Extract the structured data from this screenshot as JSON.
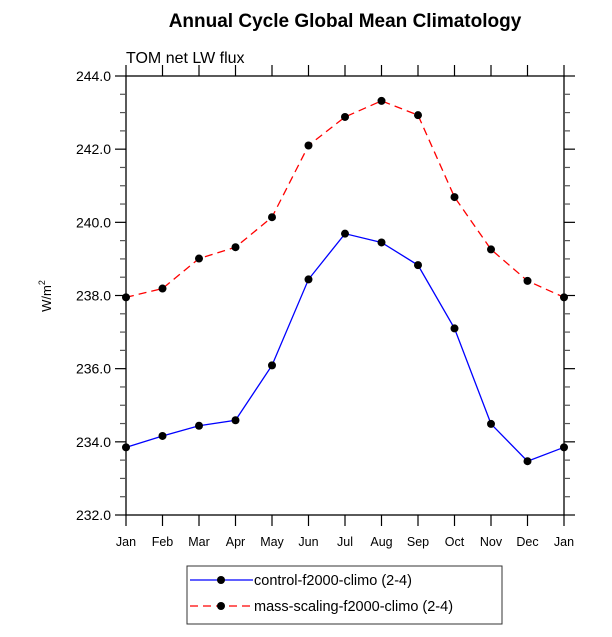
{
  "chart_data": {
    "type": "line",
    "title": "Annual Cycle Global Mean Climatology",
    "subtitle": "TOM net LW flux",
    "xlabel": "",
    "ylabel": "W/m",
    "ylabel_superscript": "2",
    "categories": [
      "Jan",
      "Feb",
      "Mar",
      "Apr",
      "May",
      "Jun",
      "Jul",
      "Aug",
      "Sep",
      "Oct",
      "Nov",
      "Dec",
      "Jan"
    ],
    "ylim": [
      232.0,
      244.0
    ],
    "yticks": [
      232.0,
      234.0,
      236.0,
      238.0,
      240.0,
      242.0,
      244.0
    ],
    "ytick_labels": [
      "232.0",
      "234.0",
      "236.0",
      "238.0",
      "240.0",
      "242.0",
      "244.0"
    ],
    "yminor_step": 0.5,
    "grid": false,
    "legend_position": "bottom-center",
    "series": [
      {
        "name": "control-f2000-climo (2-4)",
        "color": "#0000ff",
        "line_style": "solid",
        "marker": "filled-circle",
        "marker_color": "#000000",
        "values": [
          233.85,
          234.16,
          234.44,
          234.59,
          236.09,
          238.44,
          239.69,
          239.45,
          238.83,
          237.1,
          234.49,
          233.47,
          233.85
        ]
      },
      {
        "name": "mass-scaling-f2000-climo (2-4)",
        "color": "#ff0000",
        "line_style": "dashed",
        "marker": "filled-circle",
        "marker_color": "#000000",
        "values": [
          237.95,
          238.19,
          239.01,
          239.32,
          240.14,
          242.1,
          242.88,
          243.32,
          242.93,
          240.69,
          239.26,
          238.4,
          237.95
        ]
      }
    ]
  }
}
